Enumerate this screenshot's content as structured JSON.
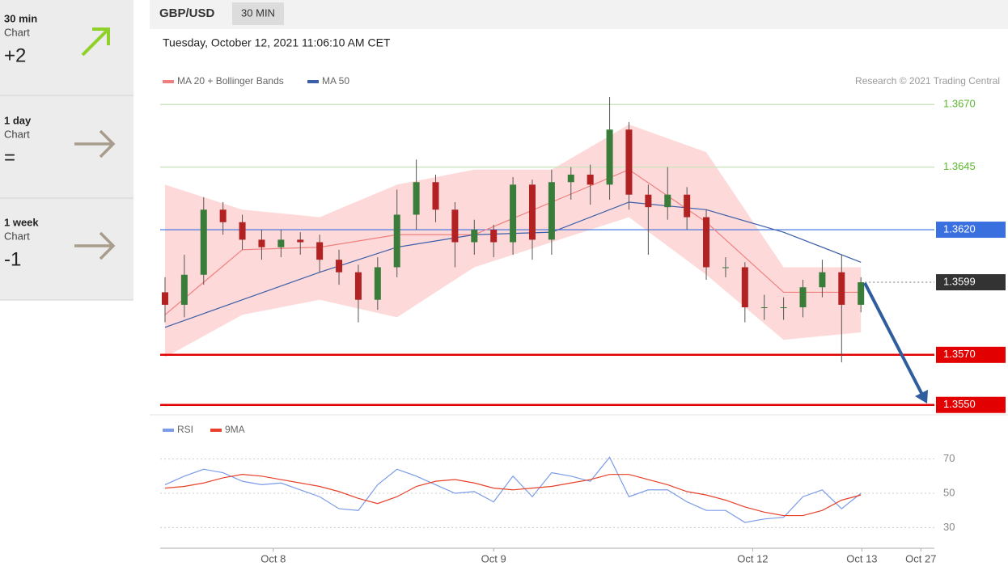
{
  "sidebar": [
    {
      "period": "30 min",
      "label": "Chart",
      "score": "+2"
    },
    {
      "period": "1 day",
      "label": "Chart",
      "score": "="
    },
    {
      "period": "1 week",
      "label": "Chart",
      "score": "-1"
    }
  ],
  "header": {
    "symbol": "GBP/USD",
    "interval": "30 MIN"
  },
  "timestamp": "Tuesday, October 12, 2021 11:06:10 AM CET",
  "chart_data": [
    {
      "type": "candlestick",
      "source": "Research © 2021 Trading Central",
      "xlim": [
        -0.25,
        39.8
      ],
      "ylim": [
        1.3547,
        1.3673
      ],
      "up_color": "#3a7d3a",
      "down_color": "#b22222",
      "open": [
        1.3595,
        1.359,
        1.3602,
        1.3628,
        1.3623,
        1.3616,
        1.3613,
        1.3616,
        1.3615,
        1.3608,
        1.3603,
        1.3592,
        1.3605,
        1.3626,
        1.3639,
        1.3628,
        1.3615,
        1.362,
        1.3615,
        1.3638,
        1.3616,
        1.3639,
        1.3642,
        1.3638,
        1.366,
        1.3634,
        1.3629,
        1.3634,
        1.3625,
        1.3605,
        1.3605,
        1.3589,
        1.3589,
        1.3589,
        1.3597,
        1.3603,
        1.359
      ],
      "high": [
        1.3601,
        1.361,
        1.3633,
        1.3631,
        1.3626,
        1.362,
        1.362,
        1.3619,
        1.3618,
        1.3612,
        1.3606,
        1.3609,
        1.3636,
        1.3648,
        1.3642,
        1.3631,
        1.3624,
        1.3622,
        1.3641,
        1.364,
        1.3644,
        1.3645,
        1.3646,
        1.3673,
        1.3663,
        1.3638,
        1.3645,
        1.3637,
        1.3628,
        1.3609,
        1.3607,
        1.3594,
        1.3593,
        1.36,
        1.3608,
        1.361,
        1.3601
      ],
      "low": [
        1.3583,
        1.3585,
        1.3598,
        1.3618,
        1.3612,
        1.3608,
        1.3609,
        1.361,
        1.3603,
        1.3598,
        1.3583,
        1.3588,
        1.3601,
        1.362,
        1.3623,
        1.3605,
        1.361,
        1.3609,
        1.361,
        1.3608,
        1.361,
        1.3632,
        1.363,
        1.3632,
        1.3628,
        1.361,
        1.3624,
        1.362,
        1.36,
        1.3601,
        1.3583,
        1.3584,
        1.3584,
        1.3585,
        1.3593,
        1.3567,
        1.3587
      ],
      "close": [
        1.359,
        1.3602,
        1.3628,
        1.3623,
        1.3616,
        1.3613,
        1.3616,
        1.3615,
        1.3608,
        1.3603,
        1.3592,
        1.3605,
        1.3626,
        1.3639,
        1.3628,
        1.3615,
        1.362,
        1.3615,
        1.3638,
        1.3616,
        1.3639,
        1.3642,
        1.3638,
        1.366,
        1.3634,
        1.3629,
        1.3634,
        1.3625,
        1.3605,
        1.3605,
        1.3589,
        1.3589,
        1.3589,
        1.3597,
        1.3603,
        1.359,
        1.3599
      ],
      "series": [
        {
          "name": "MA 20 + Bollinger Bands",
          "color": "#f08080",
          "band_color": "#fdd9d9",
          "x": [
            0,
            4,
            8,
            12,
            16,
            20,
            24,
            28,
            32,
            36
          ],
          "values": [
            1.3586,
            1.3612,
            1.3613,
            1.3618,
            1.3618,
            1.3631,
            1.3644,
            1.3623,
            1.3595,
            1.3595
          ],
          "upper": [
            1.3638,
            1.3628,
            1.3625,
            1.3638,
            1.3644,
            1.3644,
            1.3662,
            1.3651,
            1.3605,
            1.3605
          ],
          "lower": [
            1.3569,
            1.3586,
            1.3592,
            1.3585,
            1.3605,
            1.3615,
            1.3625,
            1.3602,
            1.3576,
            1.3579
          ]
        },
        {
          "name": "MA 50",
          "color": "#3b5ea8",
          "x": [
            0,
            4,
            8,
            12,
            16,
            20,
            24,
            28,
            32,
            36
          ],
          "values": [
            1.3581,
            1.3592,
            1.3603,
            1.3613,
            1.3618,
            1.3619,
            1.3631,
            1.3628,
            1.3619,
            1.3607
          ]
        }
      ],
      "levels": [
        {
          "value": 1.367,
          "label": "1.3670",
          "color": "#5cb82e",
          "line_color": "#cde6bf",
          "tag": "text",
          "line": "solid",
          "width": 1.5
        },
        {
          "value": 1.3645,
          "color": "#5cb82e",
          "line_color": "#cde6bf",
          "tag": "text",
          "line": "solid",
          "width": 1.5
        },
        {
          "value": 1.362,
          "label": "1.3620",
          "color": "#3a6fe0",
          "line_color": "#3a6fe0",
          "tag": "box",
          "line": "solid",
          "width": 1.2
        },
        {
          "value": 1.3599,
          "color": "#333333",
          "line_color": "#777777",
          "tag": "box",
          "line": "dotted",
          "width": 1
        },
        {
          "value": 1.357,
          "label": "1.3570",
          "color": "#e30000",
          "line_color": "#e30000",
          "tag": "box",
          "line": "solid",
          "width": 2.5
        },
        {
          "value": 1.355,
          "label": "1.3550",
          "color": "#e30000",
          "line_color": "#e30000",
          "tag": "box",
          "line": "solid",
          "width": 2.5
        }
      ]
    },
    {
      "type": "line",
      "xlim": [
        -0.25,
        39.8
      ],
      "ylim": [
        17,
        83
      ],
      "yticks": [
        30,
        50,
        70
      ],
      "grid": true,
      "xticks": [
        {
          "value": 5.6,
          "label": "Oct 8"
        },
        {
          "value": 17.0,
          "label": "Oct 9"
        },
        {
          "value": 30.4,
          "label": "Oct 12"
        },
        {
          "value": 36.05,
          "label": "Oct 13"
        },
        {
          "value": 39.1,
          "label": "Oct 27"
        }
      ],
      "series": [
        {
          "name": "RSI",
          "color": "#7b9be8",
          "values": [
            55,
            60,
            64,
            62,
            57,
            55,
            56,
            52,
            48,
            41,
            40,
            55,
            64,
            60,
            55,
            50,
            51,
            45,
            60,
            48,
            62,
            60,
            57,
            71,
            48,
            52,
            52,
            45,
            40,
            40,
            33,
            35,
            36,
            48,
            52,
            41,
            50
          ]
        },
        {
          "name": "9MA",
          "color": "#e8402a",
          "values": [
            53,
            54,
            56,
            59,
            61,
            60,
            58,
            56,
            54,
            51,
            47,
            44,
            48,
            54,
            57,
            58,
            56,
            53,
            52,
            53,
            54,
            56,
            58,
            61,
            61,
            58,
            55,
            51,
            49,
            46,
            42,
            39,
            37,
            37,
            40,
            46,
            49
          ]
        }
      ]
    }
  ]
}
